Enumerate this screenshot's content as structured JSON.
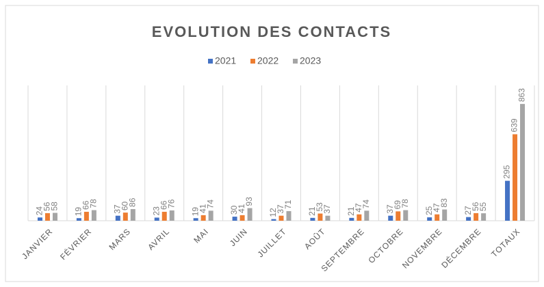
{
  "chart_data": {
    "type": "bar",
    "title": "EVOLUTION DES CONTACTS",
    "categories": [
      "JANVIER",
      "FÉVRIER",
      "MARS",
      "AVRIL",
      "MAI",
      "JUIN",
      "JUILLET",
      "AOÛT",
      "SEPTEMBRE",
      "OCTOBRE",
      "NOVEMBRE",
      "DÉCEMBRE",
      "TOTAUX"
    ],
    "series": [
      {
        "name": "2021",
        "color": "#4472c4",
        "values": [
          24,
          19,
          37,
          23,
          19,
          30,
          12,
          21,
          21,
          37,
          25,
          27,
          295
        ]
      },
      {
        "name": "2022",
        "color": "#ed7d31",
        "values": [
          56,
          66,
          60,
          66,
          41,
          41,
          37,
          53,
          47,
          69,
          47,
          56,
          639
        ]
      },
      {
        "name": "2023",
        "color": "#a5a5a5",
        "values": [
          58,
          78,
          86,
          76,
          74,
          93,
          71,
          37,
          74,
          78,
          83,
          55,
          863
        ]
      }
    ],
    "ylim": [
      0,
      1000
    ],
    "legend": "top"
  }
}
